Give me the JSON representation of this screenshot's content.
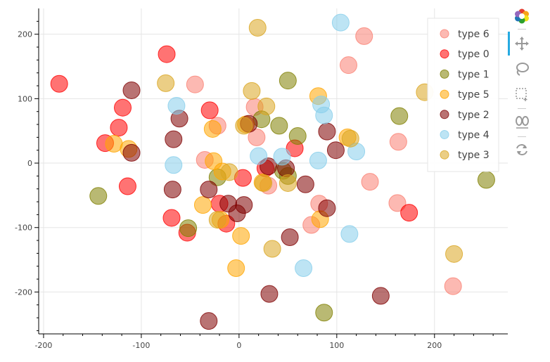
{
  "toolbar": {
    "tools": [
      {
        "name": "bokeh-logo",
        "label": "Bokeh"
      },
      {
        "name": "pan-tool",
        "label": "Pan"
      },
      {
        "name": "lasso-select-tool",
        "label": "Lasso Select"
      },
      {
        "name": "box-select-tool",
        "label": "Box Select"
      },
      {
        "name": "hover-tool",
        "label": "Hover"
      },
      {
        "name": "reset-tool",
        "label": "Reset"
      }
    ],
    "active_color": "#26aae1"
  },
  "chart_data": {
    "type": "scatter",
    "title": "",
    "xlabel": "",
    "ylabel": "",
    "xlim": [
      -205,
      275
    ],
    "ylim": [
      -265,
      240
    ],
    "x_ticks": [
      -200,
      -100,
      0,
      100,
      200
    ],
    "y_ticks": [
      -200,
      -100,
      0,
      100,
      200
    ],
    "x_tick_labels": [
      "-200",
      "-100",
      "0",
      "100",
      "200"
    ],
    "y_tick_labels": [
      "-200",
      "-100",
      "0",
      "100",
      "200"
    ],
    "grid": true,
    "legend_position": "top-right",
    "series": [
      {
        "name": "type 6",
        "color": "#fa8072",
        "points": [
          [
            128,
            197
          ],
          [
            112,
            152
          ],
          [
            -45,
            122
          ],
          [
            16,
            87
          ],
          [
            18,
            40
          ],
          [
            -35,
            5
          ],
          [
            163,
            33
          ],
          [
            82,
            -63
          ],
          [
            74,
            -96
          ],
          [
            134,
            -29
          ],
          [
            162,
            -62
          ],
          [
            219,
            -191
          ],
          [
            30,
            -35
          ],
          [
            -22,
            58
          ]
        ]
      },
      {
        "name": "type 0",
        "color": "#ff0000",
        "points": [
          [
            -184,
            123
          ],
          [
            -74,
            169
          ],
          [
            -119,
            86
          ],
          [
            -123,
            55
          ],
          [
            -137,
            31
          ],
          [
            -30,
            82
          ],
          [
            -114,
            -36
          ],
          [
            -69,
            -85
          ],
          [
            -53,
            -108
          ],
          [
            -20,
            -63
          ],
          [
            -13,
            -94
          ],
          [
            4,
            -23
          ],
          [
            27,
            -8
          ],
          [
            57,
            23
          ],
          [
            174,
            -77
          ]
        ]
      },
      {
        "name": "type 1",
        "color": "#808000",
        "points": [
          [
            50,
            128
          ],
          [
            164,
            73
          ],
          [
            41,
            58
          ],
          [
            60,
            42
          ],
          [
            23,
            68
          ],
          [
            -22,
            -22
          ],
          [
            45,
            -12
          ],
          [
            50,
            -20
          ],
          [
            -144,
            -51
          ],
          [
            -52,
            -101
          ],
          [
            87,
            -232
          ],
          [
            253,
            -26
          ]
        ]
      },
      {
        "name": "type 5",
        "color": "#ffa500",
        "points": [
          [
            81,
            104
          ],
          [
            -128,
            30
          ],
          [
            -113,
            22
          ],
          [
            -27,
            53
          ],
          [
            -26,
            3
          ],
          [
            -17,
            -13
          ],
          [
            -37,
            -65
          ],
          [
            -19,
            -88
          ],
          [
            2,
            -113
          ],
          [
            -3,
            -163
          ],
          [
            24,
            -30
          ],
          [
            83,
            -87
          ],
          [
            111,
            40
          ],
          [
            7,
            60
          ]
        ]
      },
      {
        "name": "type 2",
        "color": "#800000",
        "points": [
          [
            -110,
            113
          ],
          [
            -61,
            69
          ],
          [
            -67,
            37
          ],
          [
            -110,
            16
          ],
          [
            -68,
            -41
          ],
          [
            -31,
            -41
          ],
          [
            -11,
            -63
          ],
          [
            5,
            -65
          ],
          [
            -2,
            -78
          ],
          [
            10,
            61
          ],
          [
            30,
            -5
          ],
          [
            48,
            -8
          ],
          [
            68,
            -33
          ],
          [
            90,
            49
          ],
          [
            99,
            20
          ],
          [
            90,
            -70
          ],
          [
            52,
            -115
          ],
          [
            31,
            -203
          ],
          [
            145,
            -206
          ],
          [
            -31,
            -245
          ]
        ]
      },
      {
        "name": "type 4",
        "color": "#87ceeb",
        "points": [
          [
            104,
            218
          ],
          [
            -64,
            89
          ],
          [
            84,
            91
          ],
          [
            87,
            74
          ],
          [
            20,
            11
          ],
          [
            44,
            10
          ],
          [
            -67,
            -3
          ],
          [
            81,
            4
          ],
          [
            120,
            18
          ],
          [
            113,
            -110
          ],
          [
            66,
            -163
          ]
        ]
      },
      {
        "name": "type 3",
        "color": "#daa520",
        "points": [
          [
            19,
            210
          ],
          [
            -75,
            124
          ],
          [
            13,
            112
          ],
          [
            190,
            110
          ],
          [
            28,
            88
          ],
          [
            114,
            38
          ],
          [
            5,
            58
          ],
          [
            25,
            -31
          ],
          [
            -10,
            -14
          ],
          [
            50,
            -31
          ],
          [
            34,
            -133
          ],
          [
            220,
            -141
          ],
          [
            -22,
            -88
          ]
        ]
      }
    ]
  }
}
